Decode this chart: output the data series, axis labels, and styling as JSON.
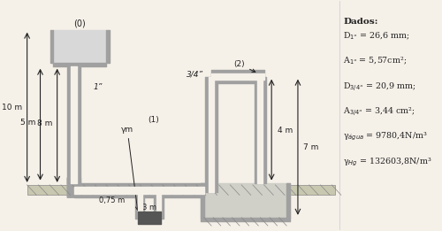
{
  "bg_color": "#f5f0e8",
  "diagram_bg": "#f5f0e8",
  "pipe_color": "#a0a0a0",
  "pipe_lw": 6,
  "pipe_inner_color": "#f5f0e8",
  "tank_color": "#a0a0a0",
  "hatch_color": "#888888",
  "text_color": "#222222",
  "dado_title": "Dados:",
  "dado_lines": [
    {
      "text": "D",
      "sub": "1”",
      "rest": " = 26,6 mm;"
    },
    {
      "text": "A",
      "sub": "1”",
      "rest": " = 5,57cm²;"
    },
    {
      "text": "D",
      "sub": "3/4”",
      "rest": " = 20,9 mm;"
    },
    {
      "text": "A",
      "sub": "3/4”",
      "rest": " = 3,44 cm²;"
    },
    {
      "text": "γ",
      "sub": "água",
      "rest": " = 9780,4N/m³"
    },
    {
      "text": "γ",
      "sub": "Hg",
      "rest": " = 132603,8N/m³"
    }
  ],
  "labels": {
    "tank_label": "(0)",
    "five_m": "5 m",
    "ten_m": "10 m",
    "eight_m": "8 m",
    "one_inch": "1”",
    "three_quarter": "3/4”",
    "point1": "(1)",
    "point2": "(2)",
    "gamma_m": "γm",
    "zero75": "0,75 m",
    "three_m": "3 m",
    "four_m": "4 m",
    "seven_m": "7 m"
  }
}
